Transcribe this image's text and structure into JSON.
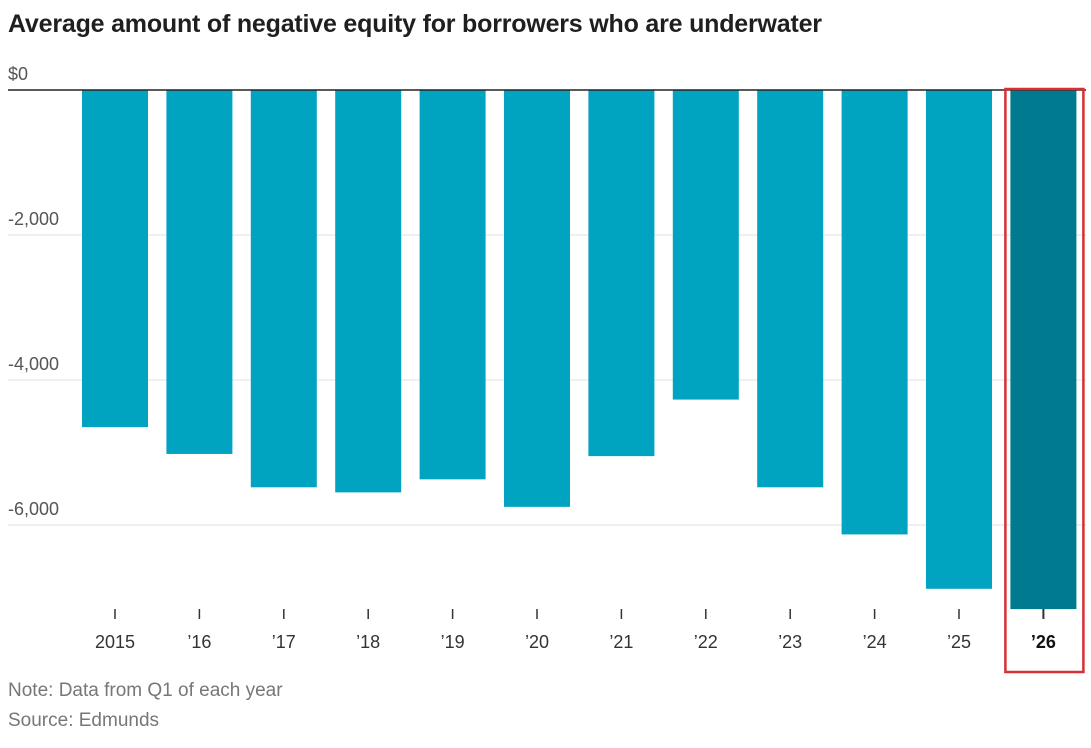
{
  "chart_data": {
    "type": "bar",
    "title": "Average amount of negative equity for borrowers who are underwater",
    "categories": [
      "2015",
      "’16",
      "’17",
      "’18",
      "’19",
      "’20",
      "’21",
      "’22",
      "’23",
      "’24",
      "’25",
      "’26"
    ],
    "values": [
      -4650,
      -5020,
      -5480,
      -5550,
      -5370,
      -5750,
      -5050,
      -4270,
      -5480,
      -6130,
      -6880,
      -7160
    ],
    "ylim": [
      -7300,
      0
    ],
    "yticks": [
      0,
      -2000,
      -4000,
      -6000
    ],
    "ytick_labels": [
      "$0",
      "-2,000",
      "-4,000",
      "-6,000"
    ],
    "grid": true,
    "colors": {
      "bar": "#00a3c0",
      "highlight_bar": "#007a8e",
      "highlight_box": "#d62f34",
      "grid": "#e2e2e2",
      "zero_line": "#222222"
    },
    "highlight_category": "’26",
    "note": "Note: Data from Q1 of each year",
    "source": "Source: Edmunds"
  }
}
